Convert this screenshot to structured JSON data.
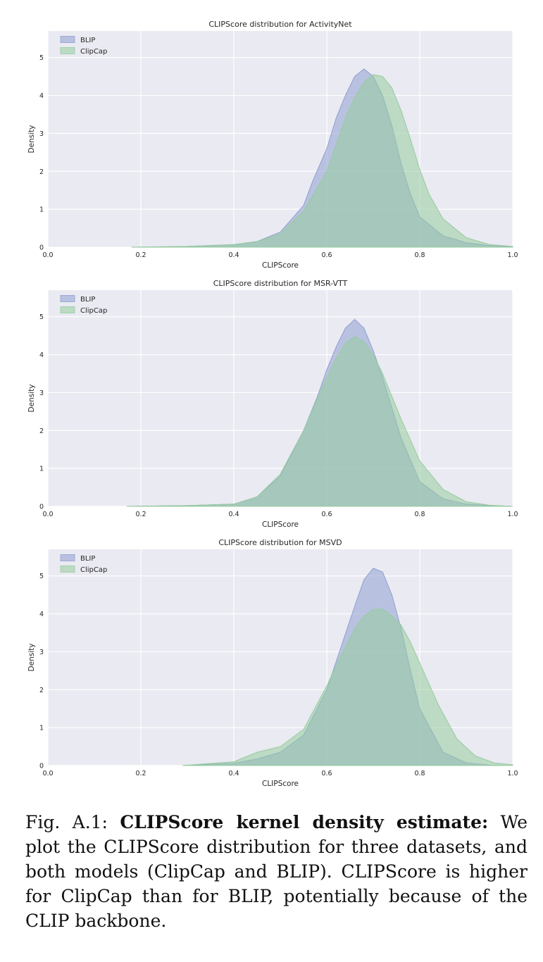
{
  "chart_data": [
    {
      "type": "area",
      "title": "CLIPScore distribution for ActivityNet",
      "xlabel": "CLIPScore",
      "ylabel": "Density",
      "xlim": [
        0,
        1
      ],
      "ylim": [
        0,
        5.7
      ],
      "xticks": [
        "0.0",
        "0.2",
        "0.4",
        "0.6",
        "0.8",
        "1.0"
      ],
      "yticks": [
        "0",
        "1",
        "2",
        "3",
        "4",
        "5"
      ],
      "grid": true,
      "legend_position": "top-left",
      "series": [
        {
          "name": "BLIP",
          "color": "#8f9fd1",
          "x": [
            0.18,
            0.3,
            0.4,
            0.45,
            0.5,
            0.55,
            0.57,
            0.6,
            0.62,
            0.64,
            0.66,
            0.68,
            0.7,
            0.72,
            0.74,
            0.76,
            0.78,
            0.8,
            0.85,
            0.9,
            0.95,
            1.0
          ],
          "y": [
            0.0,
            0.02,
            0.07,
            0.15,
            0.4,
            1.1,
            1.75,
            2.6,
            3.4,
            4.0,
            4.5,
            4.7,
            4.5,
            4.0,
            3.2,
            2.2,
            1.4,
            0.8,
            0.3,
            0.12,
            0.04,
            0.01
          ]
        },
        {
          "name": "ClipCap",
          "color": "#96cc9e",
          "x": [
            0.18,
            0.3,
            0.4,
            0.45,
            0.5,
            0.55,
            0.6,
            0.62,
            0.64,
            0.66,
            0.68,
            0.7,
            0.72,
            0.74,
            0.76,
            0.78,
            0.8,
            0.82,
            0.85,
            0.9,
            0.95,
            1.0
          ],
          "y": [
            0.0,
            0.02,
            0.07,
            0.15,
            0.35,
            0.95,
            2.0,
            2.7,
            3.4,
            3.95,
            4.35,
            4.55,
            4.5,
            4.2,
            3.6,
            2.85,
            2.05,
            1.4,
            0.75,
            0.25,
            0.07,
            0.02
          ]
        }
      ]
    },
    {
      "type": "area",
      "title": "CLIPScore distribution for MSR-VTT",
      "xlabel": "CLIPScore",
      "ylabel": "Density",
      "xlim": [
        0,
        1
      ],
      "ylim": [
        0,
        5.7
      ],
      "xticks": [
        "0.0",
        "0.2",
        "0.4",
        "0.6",
        "0.8",
        "1.0"
      ],
      "yticks": [
        "0",
        "1",
        "2",
        "3",
        "4",
        "5"
      ],
      "grid": true,
      "legend_position": "top-left",
      "series": [
        {
          "name": "BLIP",
          "color": "#8f9fd1",
          "x": [
            0.17,
            0.3,
            0.4,
            0.45,
            0.5,
            0.55,
            0.58,
            0.6,
            0.62,
            0.64,
            0.66,
            0.68,
            0.7,
            0.72,
            0.74,
            0.76,
            0.8,
            0.85,
            0.9,
            0.95,
            1.0
          ],
          "y": [
            0.0,
            0.02,
            0.06,
            0.25,
            0.8,
            2.0,
            2.9,
            3.6,
            4.2,
            4.7,
            4.93,
            4.7,
            4.1,
            3.4,
            2.6,
            1.8,
            0.65,
            0.2,
            0.06,
            0.02,
            0.0
          ]
        },
        {
          "name": "ClipCap",
          "color": "#96cc9e",
          "x": [
            0.17,
            0.3,
            0.4,
            0.45,
            0.5,
            0.55,
            0.58,
            0.6,
            0.62,
            0.64,
            0.66,
            0.68,
            0.7,
            0.72,
            0.74,
            0.76,
            0.8,
            0.85,
            0.9,
            0.95,
            1.0
          ],
          "y": [
            0.0,
            0.02,
            0.06,
            0.25,
            0.85,
            2.0,
            2.85,
            3.4,
            3.9,
            4.3,
            4.47,
            4.35,
            4.0,
            3.5,
            2.9,
            2.3,
            1.2,
            0.45,
            0.12,
            0.03,
            0.0
          ]
        }
      ]
    },
    {
      "type": "area",
      "title": "CLIPScore distribution for MSVD",
      "xlabel": "CLIPScore",
      "ylabel": "Density",
      "xlim": [
        0,
        1
      ],
      "ylim": [
        0,
        5.7
      ],
      "xticks": [
        "0.0",
        "0.2",
        "0.4",
        "0.6",
        "0.8",
        "1.0"
      ],
      "yticks": [
        "0",
        "1",
        "2",
        "3",
        "4",
        "5"
      ],
      "grid": true,
      "legend_position": "top-left",
      "series": [
        {
          "name": "BLIP",
          "color": "#8f9fd1",
          "x": [
            0.29,
            0.4,
            0.45,
            0.5,
            0.55,
            0.6,
            0.63,
            0.66,
            0.68,
            0.7,
            0.72,
            0.74,
            0.76,
            0.78,
            0.8,
            0.85,
            0.9,
            0.95,
            1.0
          ],
          "y": [
            0.0,
            0.06,
            0.17,
            0.35,
            0.8,
            2.0,
            3.1,
            4.2,
            4.9,
            5.2,
            5.1,
            4.5,
            3.6,
            2.5,
            1.5,
            0.35,
            0.07,
            0.01,
            0.0
          ]
        },
        {
          "name": "ClipCap",
          "color": "#96cc9e",
          "x": [
            0.29,
            0.4,
            0.45,
            0.5,
            0.55,
            0.6,
            0.63,
            0.66,
            0.68,
            0.7,
            0.72,
            0.74,
            0.76,
            0.78,
            0.8,
            0.84,
            0.88,
            0.92,
            0.96,
            1.0
          ],
          "y": [
            0.0,
            0.1,
            0.35,
            0.5,
            0.95,
            2.1,
            2.9,
            3.6,
            3.95,
            4.12,
            4.12,
            3.95,
            3.7,
            3.25,
            2.7,
            1.6,
            0.7,
            0.25,
            0.07,
            0.02
          ]
        }
      ]
    }
  ],
  "caption": {
    "label": "Fig. A.1:",
    "bold": "CLIPScore kernel density estimate:",
    "text": "We plot the CLIPScore distribution for three datasets, and both models (ClipCap and BLIP). CLIPScore is higher for ClipCap than for BLIP, potentially because of the CLIP backbone."
  }
}
